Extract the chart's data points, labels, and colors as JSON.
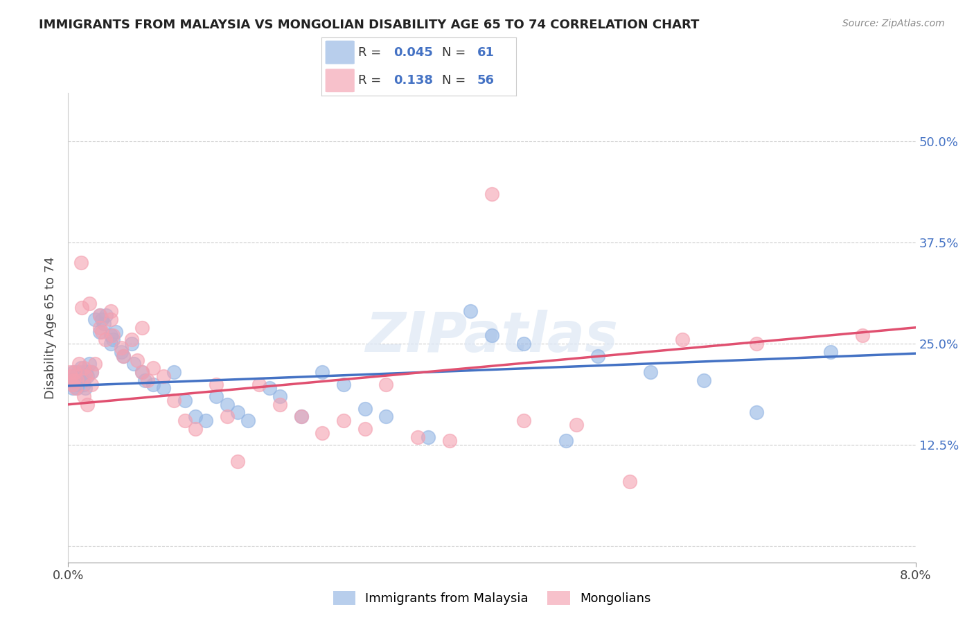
{
  "title": "IMMIGRANTS FROM MALAYSIA VS MONGOLIAN DISABILITY AGE 65 TO 74 CORRELATION CHART",
  "source": "Source: ZipAtlas.com",
  "ylabel": "Disability Age 65 to 74",
  "yticks": [
    0.0,
    0.125,
    0.25,
    0.375,
    0.5
  ],
  "ytick_labels": [
    "",
    "12.5%",
    "25.0%",
    "37.5%",
    "50.0%"
  ],
  "xlim": [
    0.0,
    0.08
  ],
  "ylim": [
    -0.02,
    0.56
  ],
  "legend1_R": "0.045",
  "legend1_N": "61",
  "legend2_R": "0.138",
  "legend2_N": "56",
  "blue_color": "#92b4e3",
  "pink_color": "#f4a0b0",
  "trendline_blue": "#4472c4",
  "trendline_pink": "#e05070",
  "watermark": "ZIPatlas",
  "malaysia_x": [
    0.0002,
    0.0003,
    0.0004,
    0.0005,
    0.0006,
    0.0007,
    0.0008,
    0.0009,
    0.001,
    0.0012,
    0.0013,
    0.0014,
    0.0015,
    0.0016,
    0.0017,
    0.0018,
    0.002,
    0.0022,
    0.0025,
    0.003,
    0.003,
    0.0032,
    0.0034,
    0.0036,
    0.004,
    0.004,
    0.0042,
    0.0045,
    0.005,
    0.0052,
    0.006,
    0.0062,
    0.007,
    0.0072,
    0.008,
    0.009,
    0.01,
    0.011,
    0.012,
    0.013,
    0.014,
    0.015,
    0.016,
    0.017,
    0.019,
    0.02,
    0.022,
    0.024,
    0.026,
    0.028,
    0.03,
    0.034,
    0.038,
    0.04,
    0.043,
    0.047,
    0.05,
    0.055,
    0.06,
    0.065,
    0.072
  ],
  "malaysia_y": [
    0.205,
    0.2,
    0.195,
    0.215,
    0.21,
    0.2,
    0.195,
    0.215,
    0.21,
    0.22,
    0.215,
    0.205,
    0.2,
    0.195,
    0.215,
    0.21,
    0.225,
    0.215,
    0.28,
    0.265,
    0.285,
    0.28,
    0.275,
    0.285,
    0.26,
    0.25,
    0.255,
    0.265,
    0.24,
    0.235,
    0.25,
    0.225,
    0.215,
    0.205,
    0.2,
    0.195,
    0.215,
    0.18,
    0.16,
    0.155,
    0.185,
    0.175,
    0.165,
    0.155,
    0.195,
    0.185,
    0.16,
    0.215,
    0.2,
    0.17,
    0.16,
    0.135,
    0.29,
    0.26,
    0.25,
    0.13,
    0.235,
    0.215,
    0.205,
    0.165,
    0.24
  ],
  "mongolian_x": [
    0.0002,
    0.0003,
    0.0004,
    0.0005,
    0.0006,
    0.0007,
    0.0008,
    0.001,
    0.0012,
    0.0013,
    0.0015,
    0.0017,
    0.002,
    0.0022,
    0.0025,
    0.003,
    0.003,
    0.0032,
    0.0035,
    0.004,
    0.004,
    0.0042,
    0.005,
    0.0052,
    0.006,
    0.0065,
    0.007,
    0.0075,
    0.008,
    0.009,
    0.01,
    0.011,
    0.012,
    0.014,
    0.015,
    0.016,
    0.018,
    0.02,
    0.022,
    0.024,
    0.026,
    0.028,
    0.03,
    0.033,
    0.036,
    0.04,
    0.043,
    0.048,
    0.053,
    0.058,
    0.065,
    0.075,
    0.0015,
    0.0018,
    0.0022,
    0.007
  ],
  "mongolian_y": [
    0.215,
    0.21,
    0.2,
    0.205,
    0.215,
    0.195,
    0.205,
    0.225,
    0.35,
    0.295,
    0.22,
    0.21,
    0.3,
    0.215,
    0.225,
    0.27,
    0.285,
    0.265,
    0.255,
    0.29,
    0.28,
    0.26,
    0.245,
    0.235,
    0.255,
    0.23,
    0.215,
    0.205,
    0.22,
    0.21,
    0.18,
    0.155,
    0.145,
    0.2,
    0.16,
    0.105,
    0.2,
    0.175,
    0.16,
    0.14,
    0.155,
    0.145,
    0.2,
    0.135,
    0.13,
    0.435,
    0.155,
    0.15,
    0.08,
    0.255,
    0.25,
    0.26,
    0.185,
    0.175,
    0.2,
    0.27
  ]
}
